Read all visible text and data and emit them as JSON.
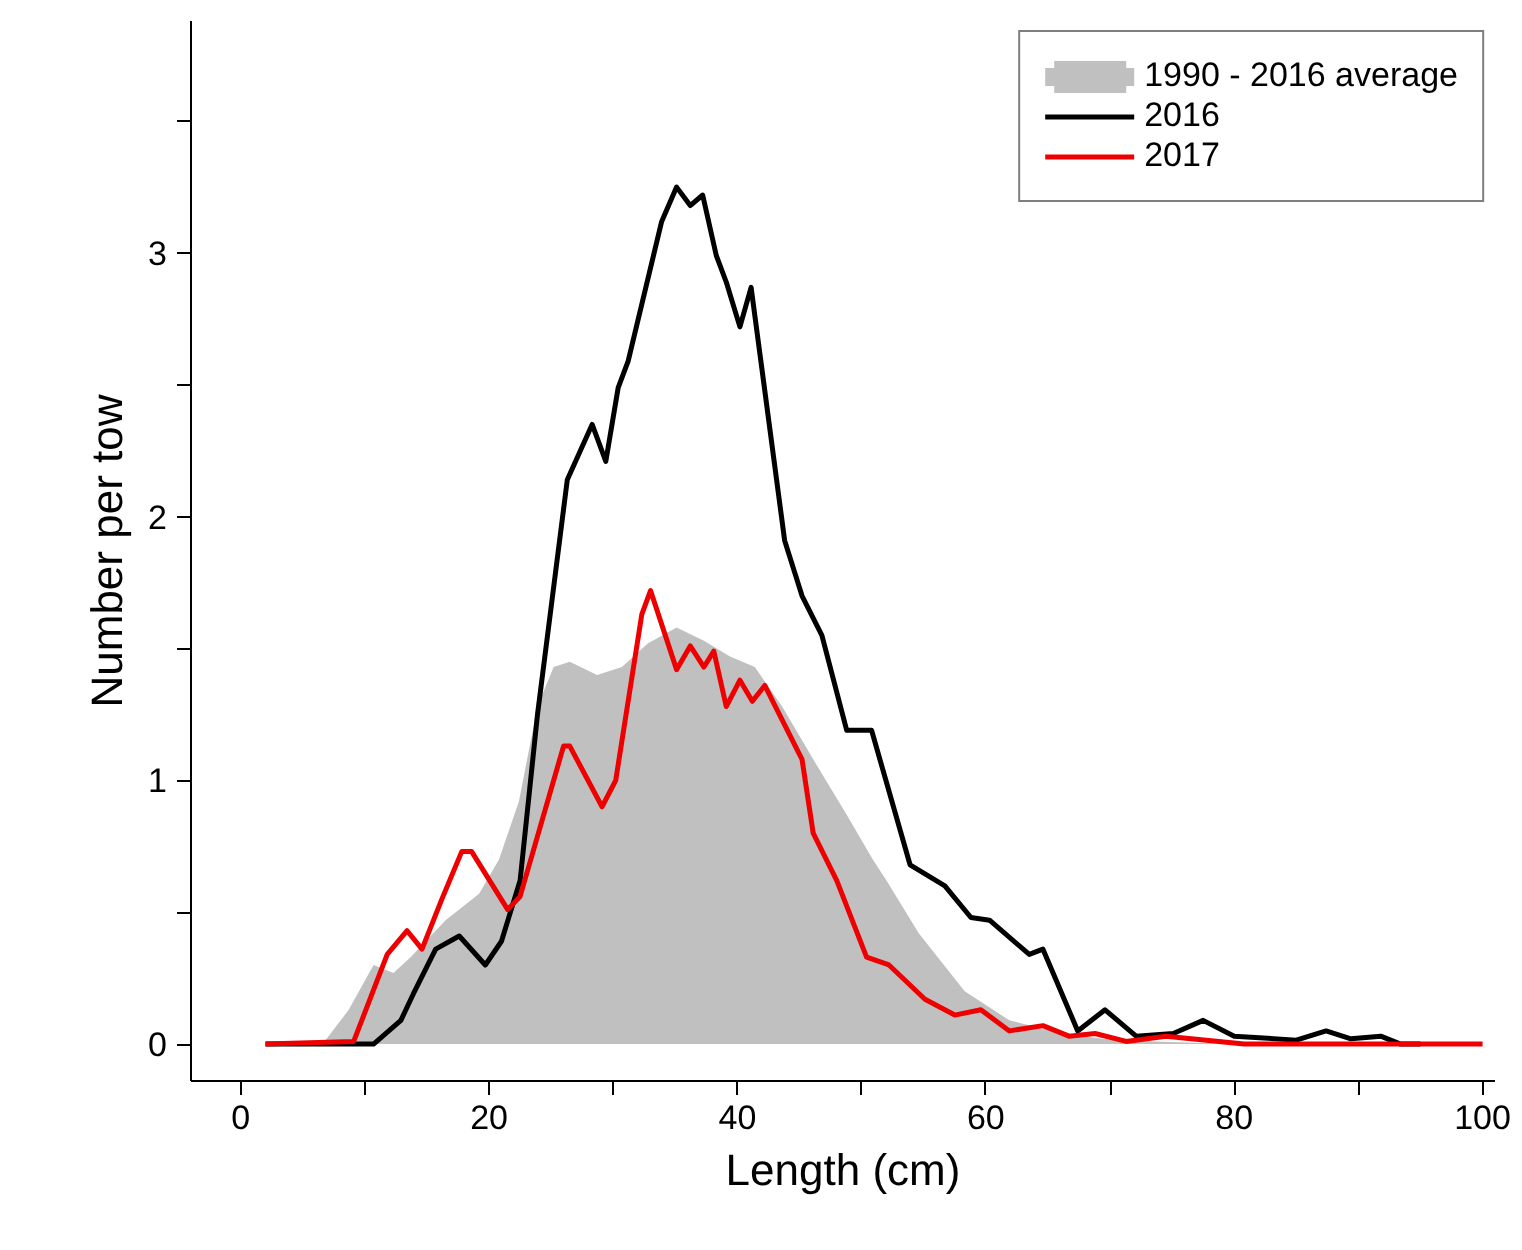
{
  "chart_data": {
    "type": "line",
    "xlabel": "Length (cm)",
    "ylabel": "Number per tow",
    "xlim": [
      -4,
      101
    ],
    "ylim": [
      -0.14,
      3.88
    ],
    "xticks": [
      0,
      {
        "value": 10,
        "label": null
      },
      20,
      {
        "value": 30,
        "label": null
      },
      40,
      {
        "value": 50,
        "label": null
      },
      60,
      {
        "value": 70,
        "label": null
      },
      80,
      {
        "value": 90,
        "label": null
      },
      100
    ],
    "yticks": [
      0,
      {
        "value": 0.5,
        "label": null
      },
      1,
      {
        "value": 1.5,
        "label": null
      },
      2,
      {
        "value": 2.5,
        "label": null
      },
      3,
      {
        "value": 3.5,
        "label": null
      }
    ],
    "grid": false,
    "legend": "top right",
    "marker": "none",
    "line_style": "solid",
    "series": [
      {
        "name": "1990 - 2016 average",
        "type": "area",
        "color": "#c0c0c0",
        "x": [
          6.6,
          8.7,
          10.7,
          12.3,
          13.7,
          16.5,
          19.2,
          20.8,
          22.4,
          23.9,
          25.2,
          26.5,
          28.7,
          30.7,
          32.8,
          35.1,
          37.3,
          39.4,
          41.4,
          43.6,
          46.1,
          48.8,
          50.9,
          52.0,
          54.6,
          58.3,
          61.9,
          66.1,
          70.4,
          80
        ],
        "values": [
          0,
          0.13,
          0.3,
          0.27,
          0.33,
          0.47,
          0.57,
          0.7,
          0.92,
          1.28,
          1.43,
          1.45,
          1.4,
          1.43,
          1.52,
          1.58,
          1.53,
          1.47,
          1.43,
          1.28,
          1.08,
          0.87,
          0.7,
          0.62,
          0.42,
          0.2,
          0.09,
          0.04,
          0.015,
          0
        ]
      },
      {
        "name": "2016",
        "color": "#000000",
        "x": [
          2,
          8,
          10.7,
          12.9,
          13.9,
          15.7,
          17.6,
          19.7,
          21,
          22.5,
          23.9,
          26.3,
          28.3,
          29.4,
          30.4,
          31.2,
          33.9,
          35.1,
          36.2,
          37.2,
          38.3,
          39.1,
          40.2,
          41.1,
          43.8,
          45.2,
          46.8,
          48.8,
          50.8,
          53.9,
          56.7,
          58.8,
          60.3,
          63.5,
          64.6,
          67.4,
          69.6,
          72.1,
          75.1,
          77.5,
          80,
          85,
          87.4,
          89.4,
          91.8,
          93.4,
          95
        ],
        "values": [
          0,
          0,
          0,
          0.09,
          0.19,
          0.36,
          0.41,
          0.3,
          0.39,
          0.62,
          1.25,
          2.14,
          2.35,
          2.21,
          2.49,
          2.59,
          3.12,
          3.25,
          3.18,
          3.22,
          2.99,
          2.89,
          2.72,
          2.87,
          1.91,
          1.7,
          1.55,
          1.19,
          1.19,
          0.68,
          0.6,
          0.48,
          0.47,
          0.34,
          0.36,
          0.05,
          0.13,
          0.03,
          0.04,
          0.09,
          0.03,
          0.015,
          0.05,
          0.02,
          0.03,
          0,
          0
        ]
      },
      {
        "name": "2017",
        "color": "#ee0000",
        "x": [
          2,
          9.1,
          11.8,
          13.4,
          14.6,
          16.2,
          17.8,
          18.6,
          21.5,
          22.5,
          26,
          26.5,
          29.1,
          30.2,
          32.3,
          33.0,
          35.1,
          36.2,
          37.3,
          38.1,
          39.1,
          40.2,
          41.2,
          42.2,
          45.2,
          46.1,
          48,
          50.4,
          52.2,
          55.1,
          57.5,
          59.6,
          61.9,
          64.6,
          66.7,
          68.8,
          71.3,
          74.5,
          80.8,
          100
        ],
        "values": [
          0,
          0.01,
          0.34,
          0.43,
          0.36,
          0.55,
          0.73,
          0.73,
          0.51,
          0.56,
          1.13,
          1.13,
          0.9,
          1.0,
          1.63,
          1.72,
          1.42,
          1.51,
          1.43,
          1.49,
          1.28,
          1.38,
          1.3,
          1.36,
          1.08,
          0.8,
          0.62,
          0.33,
          0.3,
          0.17,
          0.11,
          0.13,
          0.05,
          0.07,
          0.03,
          0.04,
          0.01,
          0.03,
          0,
          0
        ]
      }
    ]
  }
}
